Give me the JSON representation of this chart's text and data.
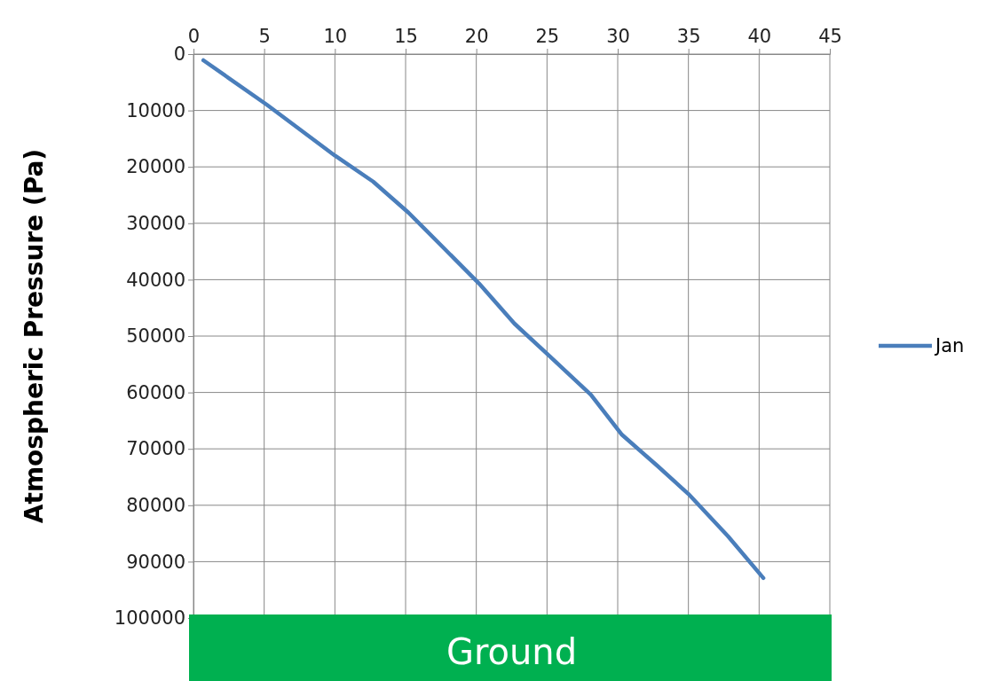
{
  "chart_data": {
    "type": "line",
    "ylabel": "Atmospheric  Pressure (Pa)",
    "series": [
      {
        "name": "Jan",
        "color": "#4a7ebb",
        "x": [
          0.7,
          5.2,
          10,
          12.7,
          15.2,
          17.7,
          20.2,
          22.7,
          25.2,
          28.1,
          30.3,
          32.8,
          35,
          37.8,
          40.3
        ],
        "values": [
          1100,
          9000,
          18000,
          22600,
          28100,
          34400,
          40700,
          47800,
          53600,
          60400,
          67500,
          73000,
          78000,
          85500,
          92900
        ]
      }
    ],
    "xlim": [
      0,
      45
    ],
    "xticks": [
      0,
      5,
      10,
      15,
      20,
      25,
      30,
      35,
      40,
      45
    ],
    "ylim": [
      100000,
      0
    ],
    "yticks": [
      0,
      10000,
      20000,
      30000,
      40000,
      50000,
      60000,
      70000,
      80000,
      90000,
      100000
    ],
    "grid": true,
    "legend": "right",
    "marker": "none",
    "line_style": "solid",
    "annotations": [
      "Ground"
    ]
  }
}
